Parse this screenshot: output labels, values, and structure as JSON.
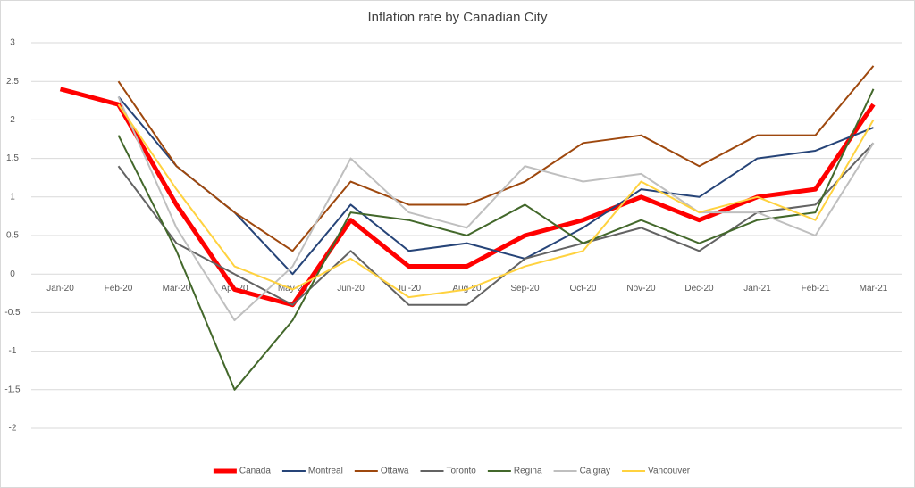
{
  "chart_data": {
    "type": "line",
    "title": "Inflation rate by Canadian City",
    "categories": [
      "Jan-20",
      "Feb-20",
      "Mar-20",
      "Apr-20",
      "May-20",
      "Jun-20",
      "Jul-20",
      "Aug-20",
      "Sep-20",
      "Oct-20",
      "Nov-20",
      "Dec-20",
      "Jan-21",
      "Feb-21",
      "Mar-21"
    ],
    "series": [
      {
        "name": "Canada",
        "color": "#ff0000",
        "line_width": 5,
        "values": [
          2.4,
          2.2,
          0.9,
          -0.2,
          -0.4,
          0.7,
          0.1,
          0.1,
          0.5,
          0.7,
          1.0,
          0.7,
          1.0,
          1.1,
          2.2
        ]
      },
      {
        "name": "Montreal",
        "color": "#264478",
        "line_width": 2,
        "values": [
          null,
          2.3,
          1.4,
          0.8,
          0.0,
          0.9,
          0.3,
          0.4,
          0.2,
          0.6,
          1.1,
          1.0,
          1.5,
          1.6,
          1.9
        ]
      },
      {
        "name": "Ottawa",
        "color": "#9e480e",
        "line_width": 2,
        "values": [
          null,
          2.5,
          1.4,
          0.8,
          0.3,
          1.2,
          0.9,
          0.9,
          1.2,
          1.7,
          1.8,
          1.4,
          1.8,
          1.8,
          2.7
        ]
      },
      {
        "name": "Toronto",
        "color": "#636363",
        "line_width": 2,
        "values": [
          null,
          1.4,
          0.4,
          0.0,
          -0.4,
          0.3,
          -0.4,
          -0.4,
          0.2,
          0.4,
          0.6,
          0.3,
          0.8,
          0.9,
          1.7
        ]
      },
      {
        "name": "Regina",
        "color": "#43682b",
        "line_width": 2,
        "values": [
          null,
          1.8,
          0.3,
          -1.5,
          -0.6,
          0.8,
          0.7,
          0.5,
          0.9,
          0.4,
          0.7,
          0.4,
          0.7,
          0.8,
          2.4
        ]
      },
      {
        "name": "Calgray",
        "color": "#bfbfbf",
        "line_width": 2,
        "values": [
          null,
          2.3,
          0.6,
          -0.6,
          0.1,
          1.5,
          0.8,
          0.6,
          1.4,
          1.2,
          1.3,
          0.8,
          0.8,
          0.5,
          1.7
        ]
      },
      {
        "name": "Vancouver",
        "color": "#ffd23f",
        "line_width": 2,
        "values": [
          null,
          2.2,
          1.1,
          0.1,
          -0.2,
          0.2,
          -0.3,
          -0.2,
          0.1,
          0.3,
          1.2,
          0.8,
          1.0,
          0.7,
          2.0
        ]
      }
    ],
    "ylim": [
      -2,
      3
    ],
    "yticks": [
      -2,
      -1.5,
      -1,
      -0.5,
      0,
      0.5,
      1,
      1.5,
      2,
      2.5,
      3
    ],
    "grid": true,
    "legend": "bottom"
  }
}
